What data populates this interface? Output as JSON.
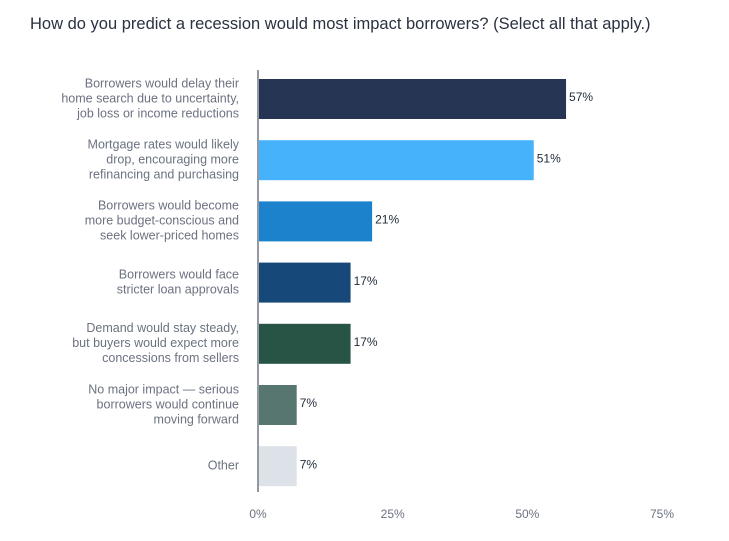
{
  "chart_data": {
    "type": "bar",
    "orientation": "horizontal",
    "title": "How do you predict a recession would most impact borrowers? (Select all that apply.)",
    "categories": [
      "Borrowers would delay their home search due to uncertainty, job loss or income reductions",
      "Mortgage rates would likely drop, encouraging more refinancing and purchasing",
      "Borrowers would become more budget-conscious and seek lower-priced homes",
      "Borrowers would face stricter loan approvals",
      "Demand would stay steady, but buyers would expect more concessions from sellers",
      "No major impact — serious borrowers would continue moving forward",
      "Other"
    ],
    "category_lines": [
      [
        "Borrowers would delay their",
        "home search due to uncertainty,",
        "job loss or income reductions"
      ],
      [
        "Mortgage rates would likely",
        "drop, encouraging more",
        "refinancing and purchasing"
      ],
      [
        "Borrowers would become",
        "more budget-conscious and",
        "seek lower-priced homes"
      ],
      [
        "Borrowers would face",
        "stricter loan approvals"
      ],
      [
        "Demand would stay steady,",
        "but buyers would expect more",
        "concessions from sellers"
      ],
      [
        "No major impact — serious",
        "borrowers would continue",
        "moving forward"
      ],
      [
        "Other"
      ]
    ],
    "values": [
      57,
      51,
      21,
      17,
      17,
      7,
      7
    ],
    "value_labels": [
      "57%",
      "51%",
      "21%",
      "17%",
      "17%",
      "7%",
      "7%"
    ],
    "colors": [
      "#263553",
      "#45b2fb",
      "#1b82cb",
      "#17487a",
      "#285445",
      "#577670",
      "#dde1e8"
    ],
    "xlim": [
      0,
      75
    ],
    "xticks": [
      0,
      25,
      50,
      75
    ],
    "xtick_labels": [
      "0%",
      "25%",
      "50%",
      "75%"
    ],
    "grid": false,
    "legend": "none"
  }
}
